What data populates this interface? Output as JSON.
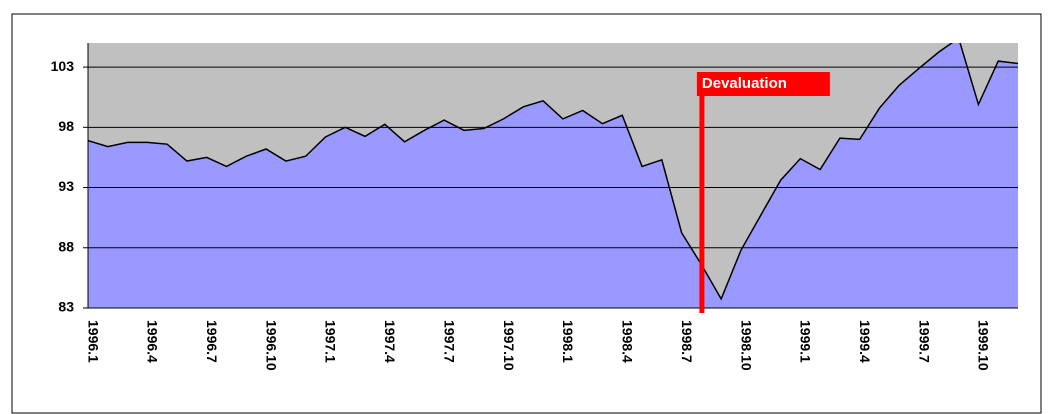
{
  "chart_data": {
    "type": "area",
    "categories": [
      "1996.1",
      null,
      null,
      "1996.4",
      null,
      null,
      "1996.7",
      null,
      null,
      "1996.10",
      null,
      null,
      "1997.1",
      null,
      null,
      "1997.4",
      null,
      null,
      "1997.7",
      null,
      null,
      "1997.10",
      null,
      null,
      "1998.1",
      null,
      null,
      "1998.4",
      null,
      null,
      "1998.7",
      null,
      null,
      "1998.10",
      null,
      null,
      "1999.1",
      null,
      null,
      "1999.4",
      null,
      null,
      "1999.7",
      null,
      null,
      "1999.10",
      null,
      null
    ],
    "values": [
      96.9,
      96.4,
      96.75,
      96.75,
      96.6,
      95.2,
      95.5,
      94.75,
      95.6,
      96.2,
      95.2,
      95.6,
      97.2,
      98.0,
      97.25,
      98.25,
      96.8,
      97.75,
      98.6,
      97.75,
      97.9,
      98.7,
      99.7,
      100.2,
      98.7,
      99.4,
      98.3,
      99.0,
      94.75,
      95.3,
      89.25,
      86.6,
      83.75,
      87.8,
      90.7,
      93.6,
      95.4,
      94.5,
      97.1,
      97.0,
      99.6,
      101.5,
      102.9,
      104.25,
      105.4,
      99.9,
      103.5,
      103.3
    ],
    "color": "#9999ff",
    "background": "#c0c0c0",
    "line_color": "#000000",
    "ylim": [
      83,
      105
    ],
    "yticks": [
      83,
      88,
      93,
      98,
      103
    ],
    "grid": true,
    "annotations": [
      {
        "text": "Devaluation",
        "color": "#ff0000"
      }
    ]
  }
}
